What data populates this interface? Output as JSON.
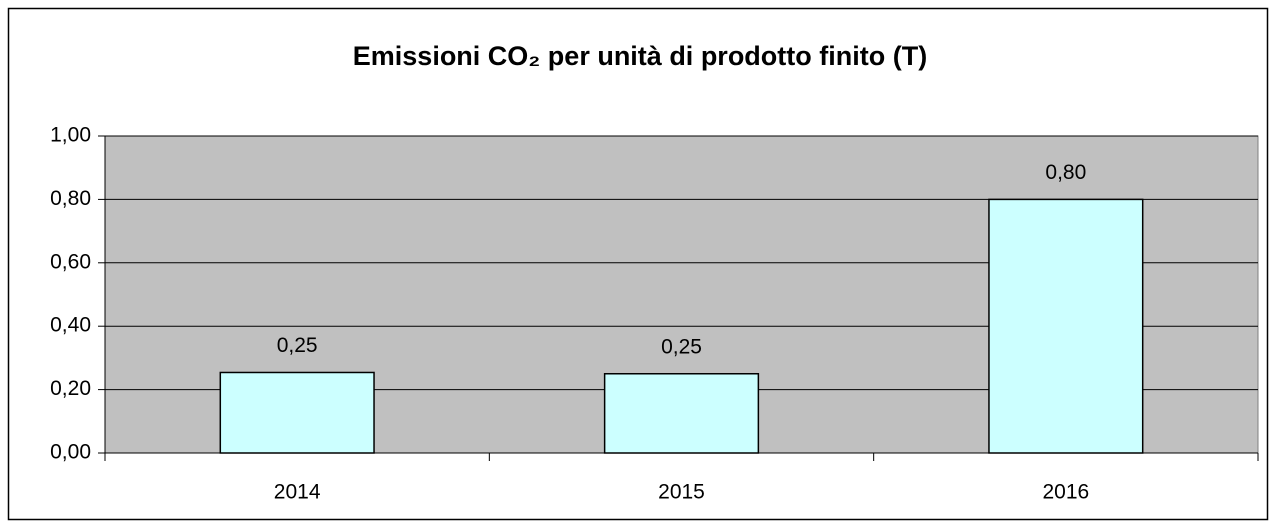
{
  "chart_data": {
    "type": "bar",
    "title": "Emissioni CO₂ per unità di prodotto finito (T)",
    "categories": [
      "2014",
      "2015",
      "2016"
    ],
    "values": [
      0.254,
      0.25,
      0.8
    ],
    "value_labels": [
      "0,25",
      "0,25",
      "0,80"
    ],
    "color": "#ccffff",
    "ylim": [
      0,
      1
    ],
    "yticks": [
      {
        "value": 0,
        "label": "0,00"
      },
      {
        "value": 0.2,
        "label": "0,20"
      },
      {
        "value": 0.4,
        "label": "0,40"
      },
      {
        "value": 0.6,
        "label": "0,60"
      },
      {
        "value": 0.8,
        "label": "0,80"
      },
      {
        "value": 1,
        "label": "1,00"
      }
    ],
    "grid": true
  }
}
